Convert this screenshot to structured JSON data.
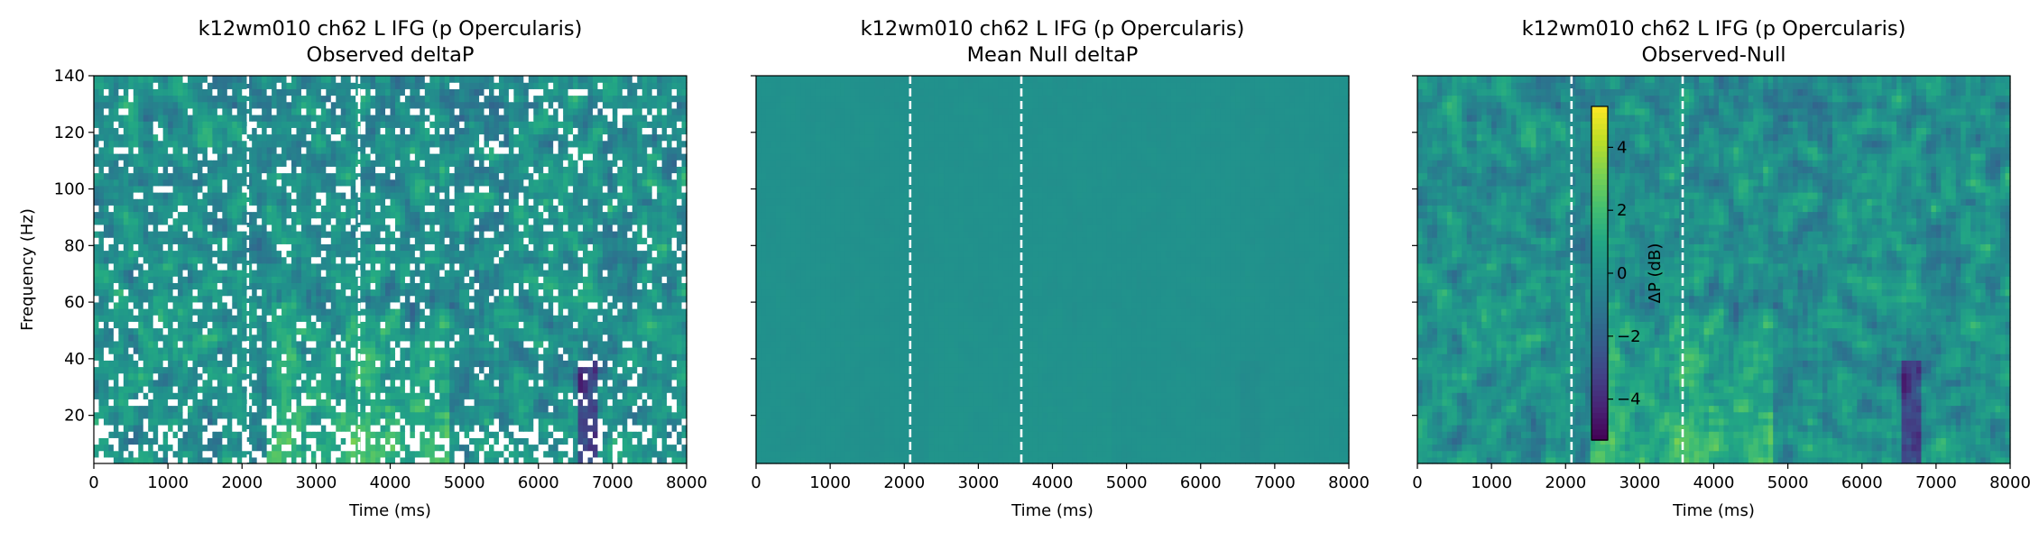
{
  "chart_data": [
    {
      "type": "heatmap",
      "title": "k12wm010 ch62 L IFG (p Opercularis)",
      "subtitle": "Observed deltaP",
      "xlabel": "Time (ms)",
      "ylabel": "Frequency (Hz)",
      "xlim": [
        0,
        8000
      ],
      "ylim": [
        3,
        140
      ],
      "x_ticks": [
        0,
        1000,
        2000,
        3000,
        4000,
        5000,
        6000,
        7000,
        8000
      ],
      "y_ticks": [
        20,
        40,
        60,
        80,
        100,
        120,
        140
      ],
      "event_lines_ms": [
        2080,
        3580
      ],
      "colormap": "viridis",
      "color_range": [
        -5.3,
        5.3
      ],
      "masked_cells": true,
      "note_values": "spectrogram of power change (dB); bright yellow bands near 2500-4500 ms below 60 Hz, dark blue band near 6600 ms"
    },
    {
      "type": "heatmap",
      "title": "k12wm010 ch62 L IFG (p Opercularis)",
      "subtitle": "Mean Null deltaP",
      "xlabel": "Time (ms)",
      "ylabel": "",
      "xlim": [
        0,
        8000
      ],
      "ylim": [
        3,
        140
      ],
      "x_ticks": [
        0,
        1000,
        2000,
        3000,
        4000,
        5000,
        6000,
        7000,
        8000
      ],
      "y_ticks": [
        20,
        40,
        60,
        80,
        100,
        120,
        140
      ],
      "event_lines_ms": [
        2080,
        3580
      ],
      "colormap": "viridis",
      "color_range": [
        -5.3,
        5.3
      ],
      "uniform_value": 0
    },
    {
      "type": "heatmap",
      "title": "k12wm010 ch62 L IFG (p Opercularis)",
      "subtitle": "Observed-Null",
      "xlabel": "Time (ms)",
      "ylabel": "",
      "xlim": [
        0,
        8000
      ],
      "ylim": [
        3,
        140
      ],
      "x_ticks": [
        0,
        1000,
        2000,
        3000,
        4000,
        5000,
        6000,
        7000,
        8000
      ],
      "y_ticks": [
        20,
        40,
        60,
        80,
        100,
        120,
        140
      ],
      "event_lines_ms": [
        2080,
        3580
      ],
      "colormap": "viridis",
      "color_range": [
        -5.3,
        5.3
      ],
      "colorbar": {
        "label": "ΔP (dB)",
        "ticks": [
          -4,
          -2,
          0,
          2,
          4
        ],
        "tick_labels": [
          "−4",
          "−2",
          "0",
          "2",
          "4"
        ],
        "range": [
          -5.3,
          5.3
        ],
        "placement": "inset-left"
      }
    }
  ]
}
